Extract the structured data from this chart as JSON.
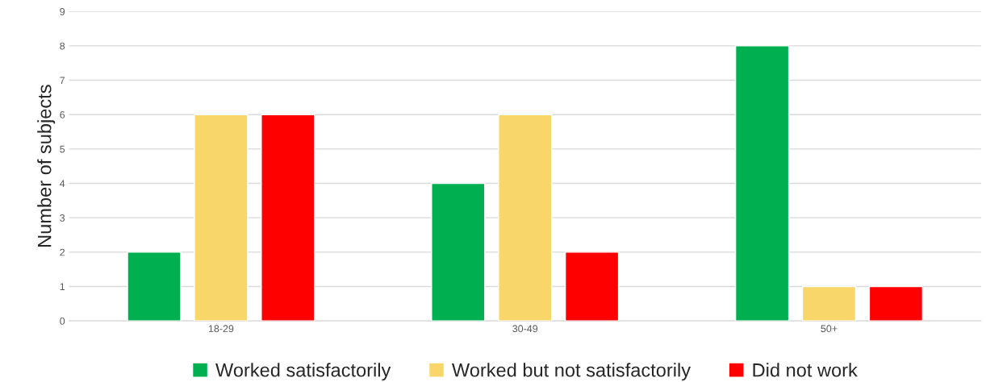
{
  "chart_data": {
    "type": "bar",
    "ylabel": "Number of subjects",
    "categories": [
      "18-29",
      "30-49",
      "50+"
    ],
    "series": [
      {
        "name": "Worked satisfactorily",
        "color": "#00b050",
        "values": [
          2,
          4,
          8
        ]
      },
      {
        "name": "Worked but not satisfactorily",
        "color": "#f8d66a",
        "values": [
          6,
          6,
          1
        ]
      },
      {
        "name": "Did not work",
        "color": "#ff0000",
        "values": [
          6,
          2,
          1
        ]
      }
    ],
    "ylim": [
      0,
      9
    ],
    "yticks": [
      0,
      1,
      2,
      3,
      4,
      5,
      6,
      7,
      8,
      9
    ],
    "grid": "y",
    "legend": "bottom"
  }
}
